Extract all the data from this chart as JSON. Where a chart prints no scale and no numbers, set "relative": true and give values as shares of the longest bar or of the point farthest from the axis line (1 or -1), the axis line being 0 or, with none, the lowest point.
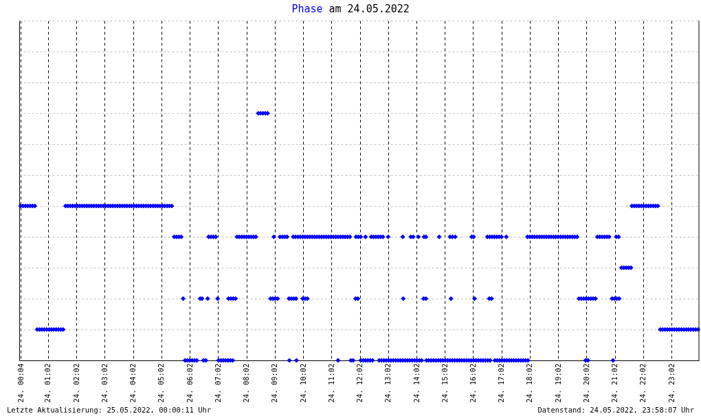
{
  "chart_data": {
    "type": "scatter",
    "title": "Phase am 24.05.2022",
    "color": "#0000ff",
    "marker": "diamond",
    "grid": true,
    "tick_labels": "x",
    "relative": true,
    "annotations": [
      "Letzte Aktualisierung: 25.05.2022, 00:00:11 Uhr",
      "Datenstand: 24.05.2022, 23:58:07 Uhr"
    ],
    "xlim": [
      "2022-05-24T00:01",
      "2022-05-25T00:00"
    ],
    "xticks": [
      {
        "value": "2022-05-24T00:04",
        "label": "24. 00:04"
      },
      {
        "value": "2022-05-24T01:02",
        "label": "24. 01:02"
      },
      {
        "value": "2022-05-24T02:02",
        "label": "24. 02:02"
      },
      {
        "value": "2022-05-24T03:02",
        "label": "24. 03:02"
      },
      {
        "value": "2022-05-24T04:02",
        "label": "24. 04:02"
      },
      {
        "value": "2022-05-24T05:02",
        "label": "24. 05:02"
      },
      {
        "value": "2022-05-24T06:02",
        "label": "24. 06:02"
      },
      {
        "value": "2022-05-24T07:02",
        "label": "24. 07:02"
      },
      {
        "value": "2022-05-24T08:02",
        "label": "24. 08:02"
      },
      {
        "value": "2022-05-24T09:02",
        "label": "24. 09:02"
      },
      {
        "value": "2022-05-24T10:02",
        "label": "24. 10:02"
      },
      {
        "value": "2022-05-24T11:02",
        "label": "24. 11:02"
      },
      {
        "value": "2022-05-24T12:02",
        "label": "24. 12:02"
      },
      {
        "value": "2022-05-24T13:02",
        "label": "24. 13:02"
      },
      {
        "value": "2022-05-24T14:02",
        "label": "24. 14:02"
      },
      {
        "value": "2022-05-24T15:02",
        "label": "24. 15:02"
      },
      {
        "value": "2022-05-24T16:02",
        "label": "24. 16:02"
      },
      {
        "value": "2022-05-24T17:02",
        "label": "24. 17:02"
      },
      {
        "value": "2022-05-24T18:02",
        "label": "24. 18:02"
      },
      {
        "value": "2022-05-24T19:02",
        "label": "24. 19:02"
      },
      {
        "value": "2022-05-24T20:02",
        "label": "24. 20:02"
      },
      {
        "value": "2022-05-24T21:02",
        "label": "24. 21:02"
      },
      {
        "value": "2022-05-24T22:02",
        "label": "24. 22:02"
      },
      {
        "value": "2022-05-24T23:02",
        "label": "24. 23:02"
      }
    ],
    "x": [
      "2022-05-24T00:04",
      "2022-05-24T00:09",
      "2022-05-24T00:14",
      "2022-05-24T00:19",
      "2022-05-24T00:24",
      "2022-05-24T00:29",
      "2022-05-24T00:34",
      "2022-05-24T00:39",
      "2022-05-24T00:44",
      "2022-05-24T00:49",
      "2022-05-24T00:54",
      "2022-05-24T00:59",
      "2022-05-24T01:04",
      "2022-05-24T01:09",
      "2022-05-24T01:14",
      "2022-05-24T01:19",
      "2022-05-24T01:24",
      "2022-05-24T01:29",
      "2022-05-24T01:34",
      "2022-05-24T01:39",
      "2022-05-24T01:44",
      "2022-05-24T01:49",
      "2022-05-24T01:54",
      "2022-05-24T01:59",
      "2022-05-24T02:04",
      "2022-05-24T02:09",
      "2022-05-24T02:14",
      "2022-05-24T02:19",
      "2022-05-24T02:24",
      "2022-05-24T02:29",
      "2022-05-24T02:34",
      "2022-05-24T02:39",
      "2022-05-24T02:44",
      "2022-05-24T02:49",
      "2022-05-24T02:54",
      "2022-05-24T02:59",
      "2022-05-24T03:04",
      "2022-05-24T03:09",
      "2022-05-24T03:14",
      "2022-05-24T03:19",
      "2022-05-24T03:24",
      "2022-05-24T03:29",
      "2022-05-24T03:34",
      "2022-05-24T03:39",
      "2022-05-24T03:44",
      "2022-05-24T03:49",
      "2022-05-24T03:54",
      "2022-05-24T03:59",
      "2022-05-24T04:04",
      "2022-05-24T04:09",
      "2022-05-24T04:14",
      "2022-05-24T04:19",
      "2022-05-24T04:24",
      "2022-05-24T04:29",
      "2022-05-24T04:34",
      "2022-05-24T04:39",
      "2022-05-24T04:44",
      "2022-05-24T04:49",
      "2022-05-24T04:54",
      "2022-05-24T04:59",
      "2022-05-24T05:04",
      "2022-05-24T05:09",
      "2022-05-24T05:14",
      "2022-05-24T05:19",
      "2022-05-24T05:24",
      "2022-05-24T05:29",
      "2022-05-24T05:34",
      "2022-05-24T05:39",
      "2022-05-24T05:44",
      "2022-05-24T05:48",
      "2022-05-24T05:52",
      "2022-05-24T05:57",
      "2022-05-24T06:02",
      "2022-05-24T06:07",
      "2022-05-24T06:12",
      "2022-05-24T06:17",
      "2022-05-24T06:24",
      "2022-05-24T06:28",
      "2022-05-24T06:31",
      "2022-05-24T06:36",
      "2022-05-24T06:40",
      "2022-05-24T06:42",
      "2022-05-24T06:47",
      "2022-05-24T06:52",
      "2022-05-24T06:57",
      "2022-05-24T07:01",
      "2022-05-24T07:03",
      "2022-05-24T07:08",
      "2022-05-24T07:13",
      "2022-05-24T07:18",
      "2022-05-24T07:23",
      "2022-05-24T07:28",
      "2022-05-24T07:33",
      "2022-05-24T07:24",
      "2022-05-24T07:29",
      "2022-05-24T07:34",
      "2022-05-24T07:39",
      "2022-05-24T07:42",
      "2022-05-24T07:47",
      "2022-05-24T07:52",
      "2022-05-24T07:57",
      "2022-05-24T08:02",
      "2022-05-24T08:07",
      "2022-05-24T08:12",
      "2022-05-24T08:17",
      "2022-05-24T08:22",
      "2022-05-24T08:27",
      "2022-05-24T08:32",
      "2022-05-24T08:37",
      "2022-05-24T08:42",
      "2022-05-24T08:47",
      "2022-05-24T08:53",
      "2022-05-24T08:58",
      "2022-05-24T09:03",
      "2022-05-24T09:08",
      "2022-05-24T09:00",
      "2022-05-24T09:13",
      "2022-05-24T09:18",
      "2022-05-24T09:23",
      "2022-05-24T09:28",
      "2022-05-24T09:32",
      "2022-05-24T09:37",
      "2022-05-24T09:42",
      "2022-05-24T09:47",
      "2022-05-24T09:33",
      "2022-05-24T09:48",
      "2022-05-24T09:41",
      "2022-05-24T09:46",
      "2022-05-24T09:51",
      "2022-05-24T09:56",
      "2022-05-24T10:01",
      "2022-05-24T10:06",
      "2022-05-24T10:11",
      "2022-05-24T10:16",
      "2022-05-24T10:21",
      "2022-05-24T10:26",
      "2022-05-24T10:31",
      "2022-05-24T10:36",
      "2022-05-24T10:41",
      "2022-05-24T10:46",
      "2022-05-24T10:51",
      "2022-05-24T10:56",
      "2022-05-24T11:01",
      "2022-05-24T11:06",
      "2022-05-24T11:11",
      "2022-05-24T11:16",
      "2022-05-24T11:21",
      "2022-05-24T11:26",
      "2022-05-24T11:31",
      "2022-05-24T11:36",
      "2022-05-24T11:41",
      "2022-05-24T10:01",
      "2022-05-24T10:06",
      "2022-05-24T10:11",
      "2022-05-24T11:16",
      "2022-05-24T11:43",
      "2022-05-24T11:48",
      "2022-05-24T11:53",
      "2022-05-24T11:58",
      "2022-05-24T11:54",
      "2022-05-24T11:59",
      "2022-05-24T12:04",
      "2022-05-24T12:04",
      "2022-05-24T12:09",
      "2022-05-24T12:14",
      "2022-05-24T12:19",
      "2022-05-24T12:24",
      "2022-05-24T12:29",
      "2022-05-24T12:14",
      "2022-05-24T12:26",
      "2022-05-24T12:31",
      "2022-05-24T12:36",
      "2022-05-24T12:41",
      "2022-05-24T12:46",
      "2022-05-24T12:51",
      "2022-05-24T12:43",
      "2022-05-24T12:48",
      "2022-05-24T12:53",
      "2022-05-24T12:58",
      "2022-05-24T13:03",
      "2022-05-24T13:08",
      "2022-05-24T13:13",
      "2022-05-24T13:18",
      "2022-05-24T13:23",
      "2022-05-24T13:28",
      "2022-05-24T13:33",
      "2022-05-24T13:38",
      "2022-05-24T13:43",
      "2022-05-24T13:48",
      "2022-05-24T13:53",
      "2022-05-24T13:58",
      "2022-05-24T14:03",
      "2022-05-24T14:08",
      "2022-05-24T14:13",
      "2022-05-24T14:23",
      "2022-05-24T14:28",
      "2022-05-24T14:33",
      "2022-05-24T14:38",
      "2022-05-24T14:43",
      "2022-05-24T14:48",
      "2022-05-24T14:53",
      "2022-05-24T14:58",
      "2022-05-24T15:03",
      "2022-05-24T15:08",
      "2022-05-24T15:13",
      "2022-05-24T15:18",
      "2022-05-24T15:23",
      "2022-05-24T15:28",
      "2022-05-24T15:33",
      "2022-05-24T15:38",
      "2022-05-24T15:43",
      "2022-05-24T15:48",
      "2022-05-24T15:53",
      "2022-05-24T15:58",
      "2022-05-24T16:03",
      "2022-05-24T16:08",
      "2022-05-24T16:13",
      "2022-05-24T16:18",
      "2022-05-24T16:23",
      "2022-05-24T16:28",
      "2022-05-24T16:33",
      "2022-05-24T16:38",
      "2022-05-24T16:48",
      "2022-05-24T16:53",
      "2022-05-24T16:58",
      "2022-05-24T17:03",
      "2022-05-24T17:08",
      "2022-05-24T17:13",
      "2022-05-24T17:18",
      "2022-05-24T17:23",
      "2022-05-24T17:28",
      "2022-05-24T17:33",
      "2022-05-24T17:38",
      "2022-05-24T17:43",
      "2022-05-24T17:48",
      "2022-05-24T17:53",
      "2022-05-24T17:58",
      "2022-05-24T13:02",
      "2022-05-24T13:33",
      "2022-05-24T13:50",
      "2022-05-24T13:55",
      "2022-05-24T14:06",
      "2022-05-24T14:18",
      "2022-05-24T14:22",
      "2022-05-24T14:50",
      "2022-05-24T15:13",
      "2022-05-24T15:18",
      "2022-05-24T15:24",
      "2022-05-24T15:59",
      "2022-05-24T16:03",
      "2022-05-24T13:34",
      "2022-05-24T14:17",
      "2022-05-24T14:22",
      "2022-05-24T15:15",
      "2022-05-24T16:05",
      "2022-05-24T16:36",
      "2022-05-24T16:41",
      "2022-05-24T16:32",
      "2022-05-24T16:37",
      "2022-05-24T16:42",
      "2022-05-24T16:47",
      "2022-05-24T16:52",
      "2022-05-24T16:57",
      "2022-05-24T17:02",
      "2022-05-24T17:12",
      "2022-05-24T17:57",
      "2022-05-24T18:02",
      "2022-05-24T18:07",
      "2022-05-24T18:12",
      "2022-05-24T18:17",
      "2022-05-24T18:22",
      "2022-05-24T18:27",
      "2022-05-24T18:32",
      "2022-05-24T18:37",
      "2022-05-24T18:42",
      "2022-05-24T18:47",
      "2022-05-24T18:52",
      "2022-05-24T18:57",
      "2022-05-24T19:02",
      "2022-05-24T19:07",
      "2022-05-24T19:12",
      "2022-05-24T19:17",
      "2022-05-24T19:22",
      "2022-05-24T19:27",
      "2022-05-24T19:32",
      "2022-05-24T19:37",
      "2022-05-24T19:42",
      "2022-05-24T19:46",
      "2022-05-24T19:51",
      "2022-05-24T19:56",
      "2022-05-24T20:01",
      "2022-05-24T20:06",
      "2022-05-24T20:11",
      "2022-05-24T20:16",
      "2022-05-24T20:21",
      "2022-05-24T20:00",
      "2022-05-24T20:05",
      "2022-05-24T20:25",
      "2022-05-24T20:30",
      "2022-05-24T20:35",
      "2022-05-24T20:40",
      "2022-05-24T20:45",
      "2022-05-24T20:50",
      "2022-05-24T20:56",
      "2022-05-24T21:01",
      "2022-05-24T21:06",
      "2022-05-24T21:11",
      "2022-05-24T20:58",
      "2022-05-24T21:05",
      "2022-05-24T21:10",
      "2022-05-24T21:16",
      "2022-05-24T21:21",
      "2022-05-24T21:26",
      "2022-05-24T21:31",
      "2022-05-24T21:36",
      "2022-05-24T21:38",
      "2022-05-24T21:43",
      "2022-05-24T21:48",
      "2022-05-24T21:53",
      "2022-05-24T21:58",
      "2022-05-24T22:03",
      "2022-05-24T22:08",
      "2022-05-24T22:13",
      "2022-05-24T22:18",
      "2022-05-24T22:23",
      "2022-05-24T22:28",
      "2022-05-24T22:33",
      "2022-05-24T22:38",
      "2022-05-24T22:43",
      "2022-05-24T22:48",
      "2022-05-24T22:53",
      "2022-05-24T22:58",
      "2022-05-24T23:03",
      "2022-05-24T23:08",
      "2022-05-24T23:13",
      "2022-05-24T23:18",
      "2022-05-24T23:23",
      "2022-05-24T23:28",
      "2022-05-24T23:33",
      "2022-05-24T23:38",
      "2022-05-24T23:43",
      "2022-05-24T23:48",
      "2022-05-24T23:53",
      "2022-05-24T23:58"
    ],
    "values": [
      0.625,
      0.625,
      0.625,
      0.625,
      0.625,
      0.625,
      0.625,
      0.125,
      0.125,
      0.125,
      0.125,
      0.125,
      0.125,
      0.125,
      0.125,
      0.125,
      0.125,
      0.125,
      0.125,
      0.625,
      0.625,
      0.625,
      0.625,
      0.625,
      0.625,
      0.625,
      0.625,
      0.625,
      0.625,
      0.625,
      0.625,
      0.625,
      0.625,
      0.625,
      0.625,
      0.625,
      0.625,
      0.625,
      0.625,
      0.625,
      0.625,
      0.625,
      0.625,
      0.625,
      0.625,
      0.625,
      0.625,
      0.625,
      0.625,
      0.625,
      0.625,
      0.625,
      0.625,
      0.625,
      0.625,
      0.625,
      0.625,
      0.625,
      0.625,
      0.625,
      0.625,
      0.625,
      0.625,
      0.625,
      0.625,
      0.5,
      0.5,
      0.5,
      0.5,
      0.25,
      0,
      0,
      0,
      0,
      0,
      0,
      0.25,
      0.25,
      0,
      0,
      0.25,
      0.5,
      0.5,
      0.5,
      0.5,
      0.25,
      0,
      0,
      0,
      0,
      0,
      0,
      0,
      0.25,
      0.25,
      0.25,
      0.25,
      0.5,
      0.5,
      0.5,
      0.5,
      0.5,
      0.5,
      0.5,
      0.5,
      0.5,
      1,
      1,
      1,
      1,
      1,
      0.25,
      0.25,
      0.25,
      0.25,
      0.5,
      0.5,
      0.5,
      0.5,
      0.5,
      0.25,
      0.25,
      0.25,
      0.25,
      0,
      0,
      0.5,
      0.5,
      0.5,
      0.5,
      0.5,
      0.5,
      0.5,
      0.5,
      0.5,
      0.5,
      0.5,
      0.5,
      0.5,
      0.5,
      0.5,
      0.5,
      0.5,
      0.5,
      0.5,
      0.5,
      0.5,
      0.5,
      0.5,
      0.5,
      0.5,
      0.25,
      0.25,
      0.25,
      0,
      0,
      0,
      0.25,
      0.25,
      0.5,
      0.5,
      0.5,
      0,
      0,
      0,
      0,
      0,
      0,
      0.5,
      0.5,
      0.5,
      0.5,
      0.5,
      0.5,
      0.5,
      0,
      0,
      0,
      0,
      0,
      0,
      0,
      0,
      0,
      0,
      0,
      0,
      0,
      0,
      0,
      0,
      0,
      0,
      0,
      0,
      0,
      0,
      0,
      0,
      0,
      0,
      0,
      0,
      0,
      0,
      0,
      0,
      0,
      0,
      0,
      0,
      0,
      0,
      0,
      0,
      0,
      0,
      0,
      0,
      0,
      0,
      0,
      0,
      0,
      0,
      0,
      0,
      0,
      0,
      0,
      0,
      0,
      0,
      0,
      0,
      0,
      0,
      0.5,
      0.5,
      0.5,
      0.5,
      0.5,
      0.5,
      0.5,
      0.5,
      0.5,
      0.5,
      0.5,
      0.5,
      0.5,
      0.25,
      0.25,
      0.25,
      0.25,
      0.25,
      0.25,
      0.25,
      0.5,
      0.5,
      0.5,
      0.5,
      0.5,
      0.5,
      0.5,
      0.5,
      0.5,
      0.5,
      0.5,
      0.5,
      0.5,
      0.5,
      0.5,
      0.5,
      0.5,
      0.5,
      0.5,
      0.5,
      0.5,
      0.5,
      0.5,
      0.5,
      0.5,
      0.5,
      0.5,
      0.5,
      0.5,
      0.5,
      0.25,
      0.25,
      0.25,
      0.25,
      0.25,
      0.25,
      0.25,
      0.25,
      0,
      0,
      0.5,
      0.5,
      0.5,
      0.5,
      0.5,
      0.5,
      0.25,
      0.25,
      0.25,
      0.25,
      0,
      0.5,
      0.5,
      0.375,
      0.375,
      0.375,
      0.375,
      0.375,
      0.625,
      0.625,
      0.625,
      0.625,
      0.625,
      0.625,
      0.625,
      0.625,
      0.625,
      0.625,
      0.625,
      0.625,
      0.125,
      0.125,
      0.125,
      0.125,
      0.125,
      0.125,
      0.125,
      0.125,
      0.125,
      0.125,
      0.125,
      0.125,
      0.125,
      0.125,
      0.125,
      0.125,
      0.125
    ]
  }
}
